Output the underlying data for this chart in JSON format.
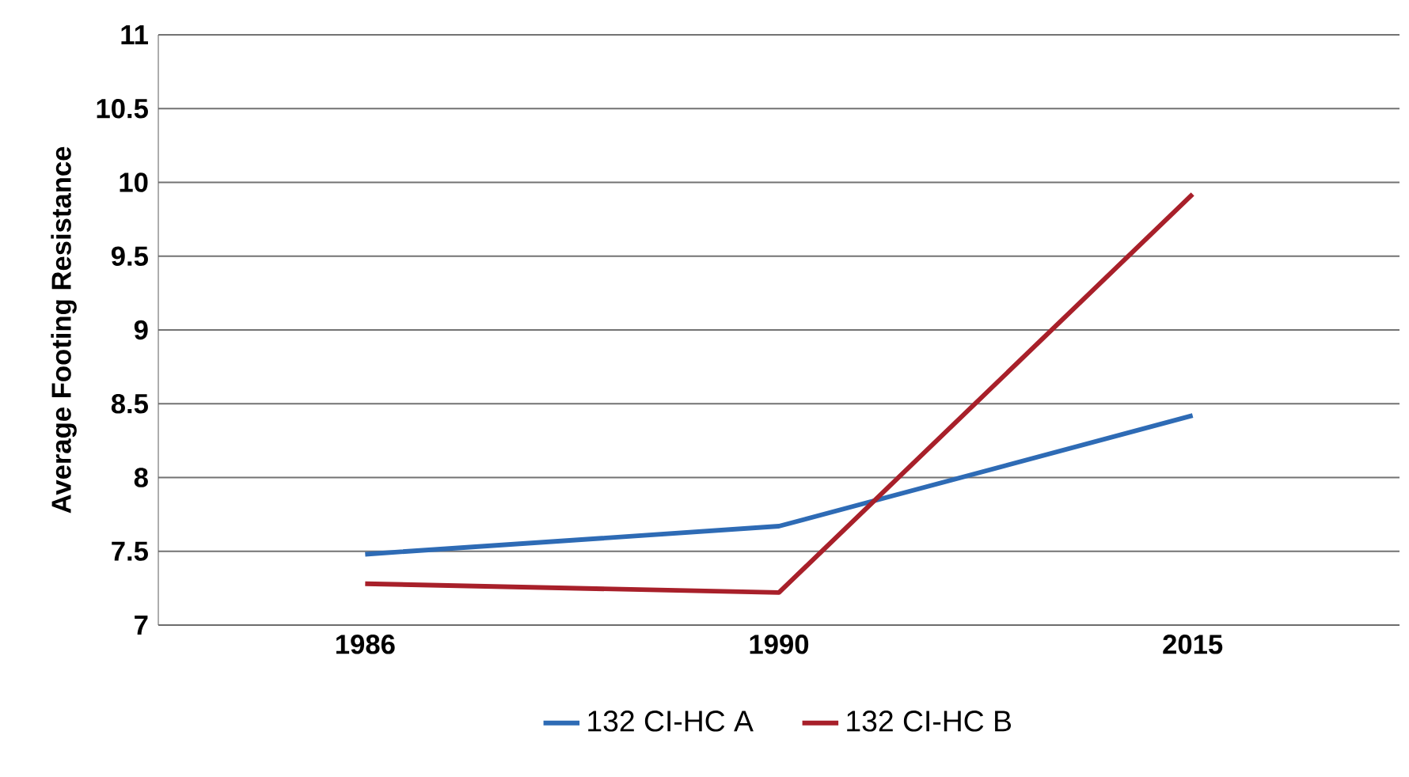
{
  "chart_data": {
    "type": "line",
    "ylabel": "Average Footing Resistance",
    "categories": [
      "1986",
      "1990",
      "2015"
    ],
    "series": [
      {
        "name": "132 CI-HC A",
        "color": "#2e6bb5",
        "values": [
          7.48,
          7.67,
          8.42
        ]
      },
      {
        "name": "132 CI-HC B",
        "color": "#a8202a",
        "values": [
          7.28,
          7.22,
          9.92
        ]
      }
    ],
    "ylim": [
      7,
      11
    ],
    "yticks": [
      7,
      7.5,
      8,
      8.5,
      9,
      9.5,
      10,
      10.5,
      11
    ],
    "grid": "y",
    "legend": "bottom",
    "marker": "none",
    "line_style": "solid"
  }
}
